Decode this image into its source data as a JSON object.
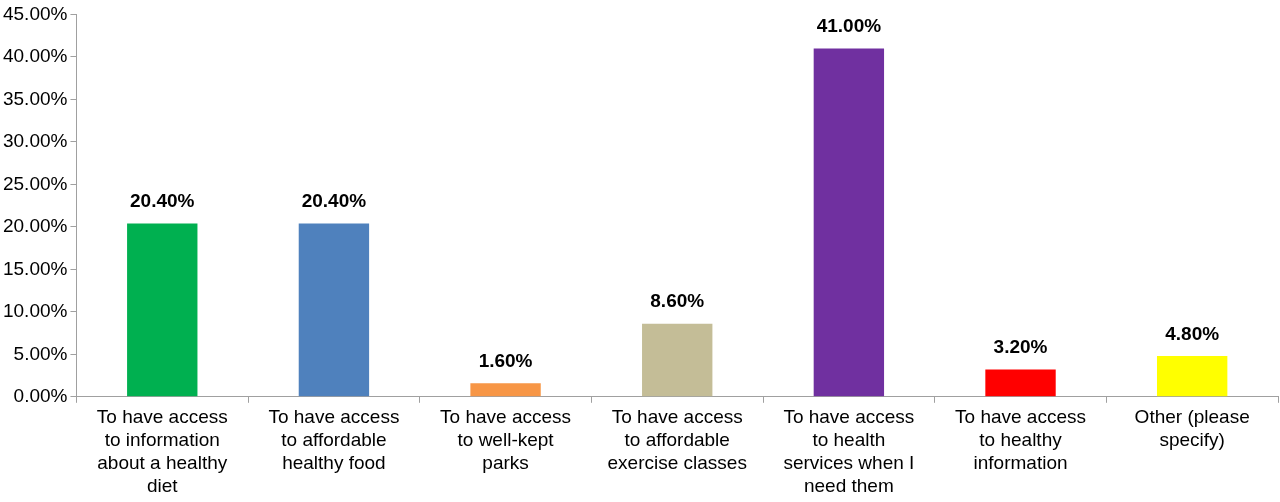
{
  "chart_data": {
    "type": "bar",
    "categories": [
      "To have access to information about a healthy diet",
      "To have access to affordable healthy food",
      "To have access to well-kept parks",
      "To have access to affordable exercise classes",
      "To have access to health services when I need them",
      "To have access to healthy information",
      "Other (please specify)"
    ],
    "values": [
      20.4,
      20.4,
      1.6,
      8.6,
      41.0,
      3.2,
      4.8
    ],
    "colors": [
      "#00b050",
      "#4f81bd",
      "#f79646",
      "#c4bd97",
      "#7030a0",
      "#ff0000",
      "#ffff00"
    ],
    "value_labels": [
      "20.40%",
      "20.40%",
      "1.60%",
      "8.60%",
      "41.00%",
      "3.20%",
      "4.80%"
    ],
    "ylim": [
      0,
      45
    ],
    "yticks": [
      {
        "value": 0,
        "label": "0.00%"
      },
      {
        "value": 5,
        "label": "5.00%"
      },
      {
        "value": 10,
        "label": "10.00%"
      },
      {
        "value": 15,
        "label": "15.00%"
      },
      {
        "value": 20,
        "label": "20.00%"
      },
      {
        "value": 25,
        "label": "25.00%"
      },
      {
        "value": 30,
        "label": "30.00%"
      },
      {
        "value": 35,
        "label": "35.00%"
      },
      {
        "value": 40,
        "label": "40.00%"
      },
      {
        "value": 45,
        "label": "45.00%"
      }
    ],
    "grid": false,
    "legend": false
  }
}
